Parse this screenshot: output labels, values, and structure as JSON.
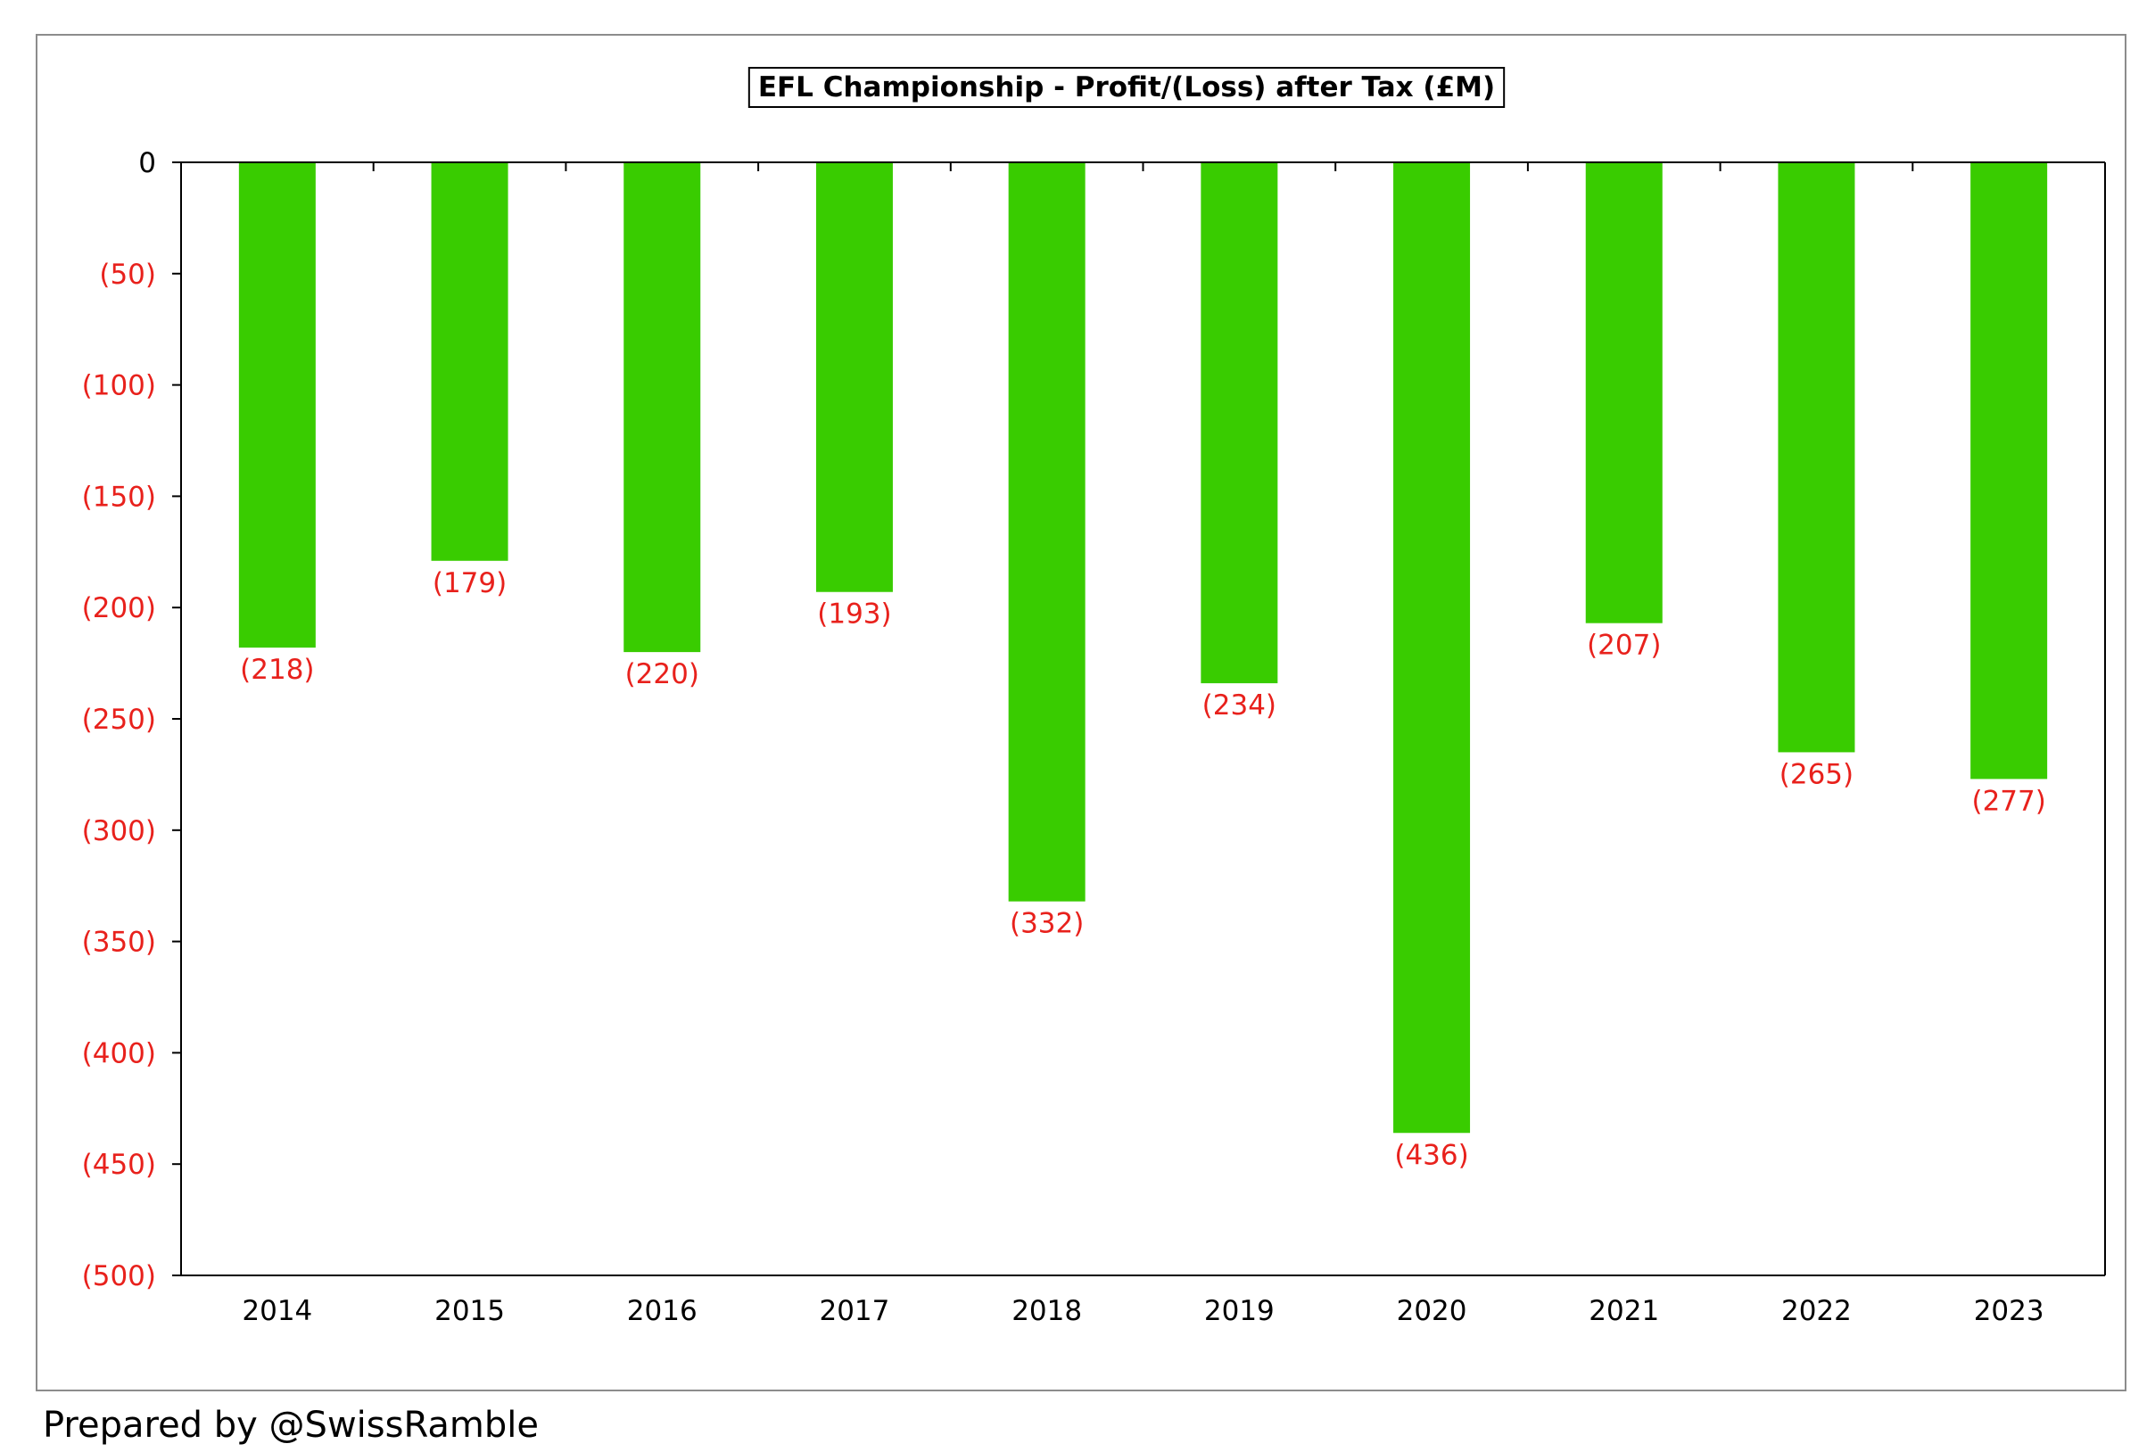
{
  "chart_data": {
    "type": "bar",
    "title": "EFL Championship - Profit/(Loss) after Tax (£M)",
    "categories": [
      "2014",
      "2015",
      "2016",
      "2017",
      "2018",
      "2019",
      "2020",
      "2021",
      "2022",
      "2023"
    ],
    "values": [
      -218,
      -179,
      -220,
      -193,
      -332,
      -234,
      -436,
      -207,
      -265,
      -277
    ],
    "data_labels": [
      "(218)",
      "(179)",
      "(220)",
      "(193)",
      "(332)",
      "(234)",
      "(436)",
      "(207)",
      "(265)",
      "(277)"
    ],
    "ylim": [
      -500,
      0
    ],
    "yticks": [
      0,
      -50,
      -100,
      -150,
      -200,
      -250,
      -300,
      -350,
      -400,
      -450,
      -500
    ],
    "ytick_labels": [
      "0",
      "(50)",
      "(100)",
      "(150)",
      "(200)",
      "(250)",
      "(300)",
      "(350)",
      "(400)",
      "(450)",
      "(500)"
    ],
    "xlabel": "",
    "ylabel": "",
    "grid": false,
    "legend": "none",
    "colors": {
      "bar": "#39cc00",
      "negative_label": "#e8211c",
      "zero_label": "#000000",
      "axis": "#000000",
      "frame": "#8c8c8c"
    }
  },
  "footer": {
    "text": "Prepared by @SwissRamble"
  }
}
